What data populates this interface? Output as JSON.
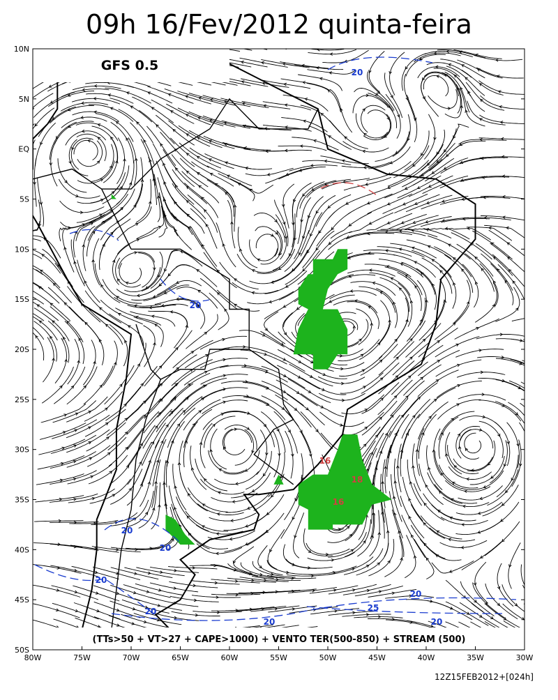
{
  "title": "09h 16/Fev/2012 quinta-feira",
  "model": "GFS 0.5",
  "lat_labels": [
    "10N",
    "5N",
    "EQ",
    "5S",
    "10S",
    "15S",
    "20S",
    "25S",
    "30S",
    "35S",
    "40S",
    "45S",
    "50S"
  ],
  "lon_labels": [
    "80W",
    "75W",
    "70W",
    "65W",
    "60W",
    "55W",
    "50W",
    "45W",
    "40W",
    "35W",
    "30W"
  ],
  "contour_labels": [
    "20",
    "20",
    "20",
    "20",
    "20",
    "20",
    "20",
    "25",
    "20",
    "20",
    "16",
    "18",
    "16"
  ],
  "legend": "(TTs>50 + VT>27 + CAPE>1000) + VENTO TER(500-850) + STREAM (500)",
  "timestamp": "12Z15FEB2012+[024h]"
}
